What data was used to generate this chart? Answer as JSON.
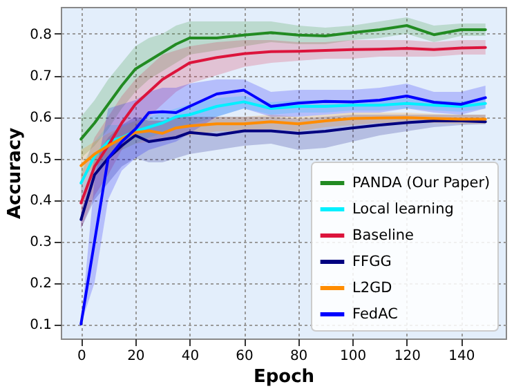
{
  "chart_data": {
    "type": "line",
    "xlabel": "Epoch",
    "ylabel": "Accuracy",
    "x": [
      0,
      5,
      10,
      15,
      20,
      25,
      30,
      35,
      40,
      50,
      60,
      70,
      80,
      90,
      100,
      110,
      120,
      130,
      140,
      149
    ],
    "xlim": [
      -7.45,
      156.45
    ],
    "ylim": [
      0.065,
      0.865
    ],
    "xticks": [
      0,
      20,
      40,
      60,
      80,
      100,
      120,
      140
    ],
    "yticks": [
      0.1,
      0.2,
      0.3,
      0.4,
      0.5,
      0.6,
      0.7,
      0.8
    ],
    "grid": true,
    "legend": "bottom right",
    "line_style": "solid",
    "series": [
      {
        "name": "PANDA (Our Paper)",
        "color": "#228b22",
        "values": [
          0.546,
          0.585,
          0.63,
          0.675,
          0.715,
          0.735,
          0.755,
          0.775,
          0.79,
          0.79,
          0.797,
          0.803,
          0.797,
          0.795,
          0.803,
          0.81,
          0.82,
          0.798,
          0.81,
          0.81
        ],
        "lower": [
          0.5,
          0.53,
          0.57,
          0.62,
          0.66,
          0.69,
          0.71,
          0.73,
          0.75,
          0.76,
          0.77,
          0.78,
          0.775,
          0.775,
          0.785,
          0.79,
          0.8,
          0.78,
          0.795,
          0.795
        ],
        "upper": [
          0.6,
          0.64,
          0.69,
          0.73,
          0.77,
          0.79,
          0.8,
          0.82,
          0.83,
          0.83,
          0.83,
          0.83,
          0.82,
          0.815,
          0.82,
          0.83,
          0.84,
          0.82,
          0.825,
          0.825
        ]
      },
      {
        "name": "Local learning",
        "color": "#00f0ff",
        "values": [
          0.44,
          0.505,
          0.54,
          0.55,
          0.565,
          0.575,
          0.585,
          0.6,
          0.605,
          0.625,
          0.636,
          0.62,
          0.625,
          0.625,
          0.628,
          0.628,
          0.632,
          0.628,
          0.625,
          0.632
        ],
        "lower": [
          0.4,
          0.47,
          0.5,
          0.52,
          0.535,
          0.55,
          0.56,
          0.57,
          0.58,
          0.6,
          0.62,
          0.605,
          0.61,
          0.61,
          0.615,
          0.615,
          0.62,
          0.615,
          0.612,
          0.62
        ],
        "upper": [
          0.48,
          0.54,
          0.58,
          0.58,
          0.59,
          0.6,
          0.61,
          0.62,
          0.63,
          0.645,
          0.65,
          0.635,
          0.64,
          0.64,
          0.64,
          0.64,
          0.645,
          0.64,
          0.638,
          0.645
        ]
      },
      {
        "name": "Baseline",
        "color": "#dc143c",
        "values": [
          0.392,
          0.48,
          0.53,
          0.585,
          0.63,
          0.66,
          0.69,
          0.71,
          0.73,
          0.743,
          0.752,
          0.757,
          0.758,
          0.76,
          0.762,
          0.763,
          0.765,
          0.762,
          0.766,
          0.767
        ],
        "lower": [
          0.33,
          0.41,
          0.46,
          0.52,
          0.57,
          0.6,
          0.63,
          0.66,
          0.68,
          0.7,
          0.72,
          0.73,
          0.735,
          0.74,
          0.74,
          0.745,
          0.745,
          0.745,
          0.75,
          0.75
        ],
        "upper": [
          0.46,
          0.55,
          0.6,
          0.65,
          0.69,
          0.72,
          0.75,
          0.76,
          0.77,
          0.78,
          0.785,
          0.785,
          0.78,
          0.78,
          0.785,
          0.785,
          0.785,
          0.78,
          0.785,
          0.785
        ]
      },
      {
        "name": "FFGG",
        "color": "#000080",
        "values": [
          0.352,
          0.46,
          0.5,
          0.53,
          0.555,
          0.54,
          0.545,
          0.55,
          0.562,
          0.556,
          0.566,
          0.566,
          0.56,
          0.565,
          0.573,
          0.58,
          0.586,
          0.59,
          0.59,
          0.588
        ],
        "lower": [
          0.33,
          0.4,
          0.44,
          0.48,
          0.5,
          0.49,
          0.49,
          0.5,
          0.51,
          0.52,
          0.53,
          0.535,
          0.52,
          0.525,
          0.54,
          0.555,
          0.565,
          0.575,
          0.58,
          0.582
        ],
        "upper": [
          0.37,
          0.5,
          0.55,
          0.58,
          0.6,
          0.59,
          0.59,
          0.6,
          0.6,
          0.6,
          0.6,
          0.6,
          0.595,
          0.6,
          0.605,
          0.605,
          0.605,
          0.605,
          0.605,
          0.605
        ]
      },
      {
        "name": "L2GD",
        "color": "#ff8c00",
        "values": [
          0.482,
          0.51,
          0.53,
          0.548,
          0.562,
          0.566,
          0.56,
          0.573,
          0.578,
          0.583,
          0.583,
          0.588,
          0.583,
          0.59,
          0.596,
          0.597,
          0.598,
          0.596,
          0.594,
          0.594
        ],
        "lower": [
          0.45,
          0.48,
          0.5,
          0.52,
          0.535,
          0.54,
          0.54,
          0.55,
          0.555,
          0.565,
          0.565,
          0.57,
          0.565,
          0.575,
          0.58,
          0.585,
          0.585,
          0.585,
          0.583,
          0.583
        ],
        "upper": [
          0.52,
          0.54,
          0.56,
          0.575,
          0.59,
          0.595,
          0.59,
          0.6,
          0.6,
          0.6,
          0.6,
          0.605,
          0.6,
          0.605,
          0.61,
          0.61,
          0.61,
          0.607,
          0.605,
          0.605
        ]
      },
      {
        "name": "FedAC",
        "color": "#0000ff",
        "values": [
          0.1,
          0.3,
          0.5,
          0.54,
          0.57,
          0.61,
          0.612,
          0.61,
          0.625,
          0.655,
          0.664,
          0.625,
          0.633,
          0.637,
          0.636,
          0.64,
          0.65,
          0.635,
          0.63,
          0.646
        ],
        "lower": [
          0.1,
          0.2,
          0.4,
          0.47,
          0.5,
          0.52,
          0.53,
          0.54,
          0.56,
          0.6,
          0.62,
          0.6,
          0.6,
          0.605,
          0.61,
          0.61,
          0.62,
          0.61,
          0.605,
          0.62
        ],
        "upper": [
          0.1,
          0.45,
          0.62,
          0.63,
          0.64,
          0.66,
          0.67,
          0.67,
          0.68,
          0.69,
          0.69,
          0.66,
          0.665,
          0.665,
          0.665,
          0.67,
          0.68,
          0.66,
          0.66,
          0.675
        ]
      }
    ]
  }
}
